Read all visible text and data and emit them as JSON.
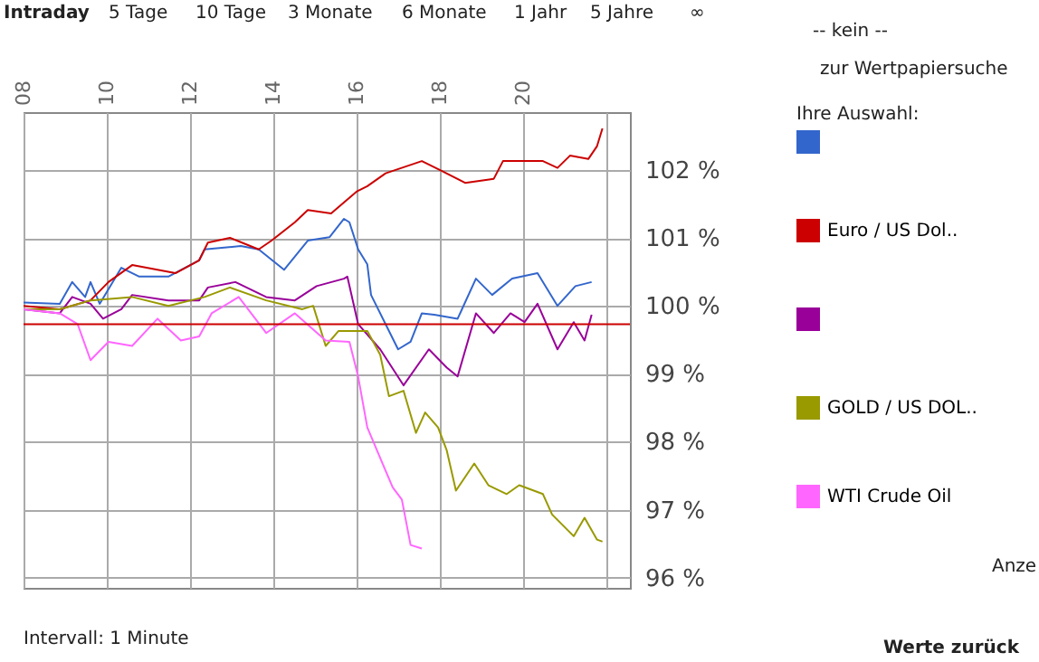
{
  "chart_data": {
    "type": "line",
    "xlim": [
      8,
      22.57
    ],
    "ylim": [
      95.85,
      102.85
    ],
    "xticks": [
      {
        "value": 8,
        "label": "08"
      },
      {
        "value": 10,
        "label": "10"
      },
      {
        "value": 12,
        "label": "12"
      },
      {
        "value": 14,
        "label": "14"
      },
      {
        "value": 16,
        "label": "16"
      },
      {
        "value": 18,
        "label": "18"
      },
      {
        "value": 20,
        "label": "20"
      },
      {
        "value": 22,
        "label": null
      }
    ],
    "yticks": [
      {
        "value": 96,
        "label": "96 %"
      },
      {
        "value": 97,
        "label": "97 %"
      },
      {
        "value": 98,
        "label": "98 %"
      },
      {
        "value": 99,
        "label": "99 %"
      },
      {
        "value": 100,
        "label": "100 %"
      },
      {
        "value": 101,
        "label": "101 %"
      },
      {
        "value": 102,
        "label": "102 %"
      }
    ],
    "grid": true,
    "legend": "right",
    "marker": "none",
    "line_style": "solid",
    "ref_lines": [
      {
        "axis": "y",
        "value": 99.73,
        "color": "#cc0000"
      }
    ],
    "annotations": [
      "Intraday",
      "5 Tage",
      "10 Tage",
      "3 Monate",
      "6 Monate",
      "1 Jahr",
      "5 Jahre",
      "∞",
      "-- kein --",
      "zur Wertpapiersuche",
      "Ihre Auswahl:",
      "Anze",
      "Werte zurück",
      "Intervall: 1 Minute"
    ],
    "series": [
      {
        "color": "#3366cc",
        "x": [
          8.0,
          8.87,
          9.17,
          9.48,
          9.61,
          9.83,
          10.35,
          10.78,
          11.48,
          12.22,
          12.35,
          13.22,
          13.65,
          14.26,
          14.83,
          15.35,
          15.7,
          15.83,
          16.04,
          16.26,
          16.35,
          16.7,
          17.0,
          17.3,
          17.57,
          17.87,
          18.43,
          18.87,
          19.26,
          19.74,
          20.35,
          20.83,
          21.26,
          21.65
        ],
        "values": [
          100.05,
          100.03,
          100.35,
          100.13,
          100.35,
          100.03,
          100.56,
          100.43,
          100.43,
          100.67,
          100.83,
          100.88,
          100.83,
          100.53,
          100.96,
          101.01,
          101.28,
          101.23,
          100.83,
          100.61,
          100.16,
          99.73,
          99.36,
          99.47,
          99.89,
          99.87,
          99.81,
          100.4,
          100.16,
          100.4,
          100.48,
          100.0,
          100.29,
          100.35
        ]
      },
      {
        "name": "Euro / US Dol..",
        "color": "#cc0000",
        "x": [
          8.0,
          8.87,
          9.61,
          10.04,
          10.61,
          11.65,
          12.22,
          12.43,
          12.96,
          13.65,
          13.96,
          14.52,
          14.83,
          15.39,
          16.0,
          16.26,
          16.7,
          17.57,
          18.0,
          18.61,
          19.3,
          19.52,
          20.48,
          20.83,
          21.13,
          21.57,
          21.78,
          21.91
        ],
        "values": [
          100.0,
          99.95,
          100.08,
          100.35,
          100.6,
          100.48,
          100.67,
          100.93,
          101.0,
          100.83,
          100.96,
          101.23,
          101.41,
          101.36,
          101.68,
          101.76,
          101.95,
          102.13,
          102.0,
          101.81,
          101.87,
          102.13,
          102.13,
          102.03,
          102.21,
          102.16,
          102.35,
          102.61
        ]
      },
      {
        "color": "#990099",
        "x": [
          8.0,
          8.87,
          9.17,
          9.61,
          9.91,
          10.35,
          10.61,
          11.48,
          12.22,
          12.43,
          13.09,
          13.83,
          14.52,
          15.04,
          15.7,
          15.78,
          16.04,
          16.57,
          17.13,
          17.74,
          18.17,
          18.43,
          18.87,
          19.3,
          19.7,
          20.04,
          20.35,
          20.83,
          21.22,
          21.48,
          21.65
        ],
        "values": [
          99.95,
          99.89,
          100.13,
          100.03,
          99.81,
          99.95,
          100.16,
          100.08,
          100.08,
          100.27,
          100.35,
          100.13,
          100.08,
          100.29,
          100.4,
          100.43,
          99.73,
          99.36,
          98.83,
          99.36,
          99.09,
          98.96,
          99.89,
          99.6,
          99.89,
          99.76,
          100.03,
          99.36,
          99.76,
          99.49,
          99.87
        ]
      },
      {
        "name": "GOLD / US DOL..",
        "color": "#999900",
        "x": [
          8.0,
          8.87,
          9.61,
          10.61,
          11.48,
          12.35,
          12.96,
          13.83,
          14.7,
          14.96,
          15.26,
          15.57,
          16.0,
          16.26,
          16.57,
          16.78,
          17.13,
          17.43,
          17.65,
          17.96,
          18.17,
          18.39,
          18.83,
          19.17,
          19.61,
          19.91,
          20.48,
          20.7,
          21.22,
          21.48,
          21.78,
          21.91
        ],
        "values": [
          99.95,
          99.95,
          100.08,
          100.13,
          100.0,
          100.13,
          100.27,
          100.08,
          99.95,
          100.0,
          99.41,
          99.63,
          99.63,
          99.63,
          99.28,
          98.67,
          98.75,
          98.13,
          98.43,
          98.21,
          97.87,
          97.28,
          97.68,
          97.36,
          97.23,
          97.36,
          97.23,
          96.93,
          96.61,
          96.88,
          96.56,
          96.53
        ]
      },
      {
        "name": "WTI Crude Oil",
        "color": "#ff66ff",
        "x": [
          8.0,
          8.87,
          9.3,
          9.61,
          10.04,
          10.61,
          11.22,
          11.78,
          12.22,
          12.52,
          13.17,
          13.83,
          14.52,
          15.26,
          15.83,
          16.04,
          16.26,
          16.57,
          16.87,
          17.09,
          17.3,
          17.57
        ],
        "values": [
          99.95,
          99.89,
          99.73,
          99.2,
          99.47,
          99.41,
          99.81,
          99.49,
          99.55,
          99.89,
          100.13,
          99.6,
          99.89,
          99.49,
          99.47,
          98.96,
          98.21,
          97.76,
          97.33,
          97.15,
          96.48,
          96.43
        ]
      }
    ]
  }
}
